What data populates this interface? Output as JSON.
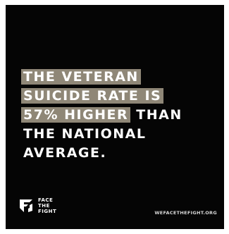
{
  "headline": {
    "line1": "THE VETERAN",
    "line2": "SUICIDE RATE IS",
    "line3_highlight": "57% HIGHER",
    "line3_rest": " THAN",
    "line4": "THE NATIONAL",
    "line5": "AVERAGE."
  },
  "logo": {
    "icon": "face-the-fight-emblem-icon",
    "line1": "FACE",
    "line2": "THE",
    "line3": "FIGHT"
  },
  "website": "WEFACETHEFIGHT.ORG",
  "colors": {
    "background": "#050505",
    "highlight": "#8f8777",
    "text": "#ffffff"
  }
}
